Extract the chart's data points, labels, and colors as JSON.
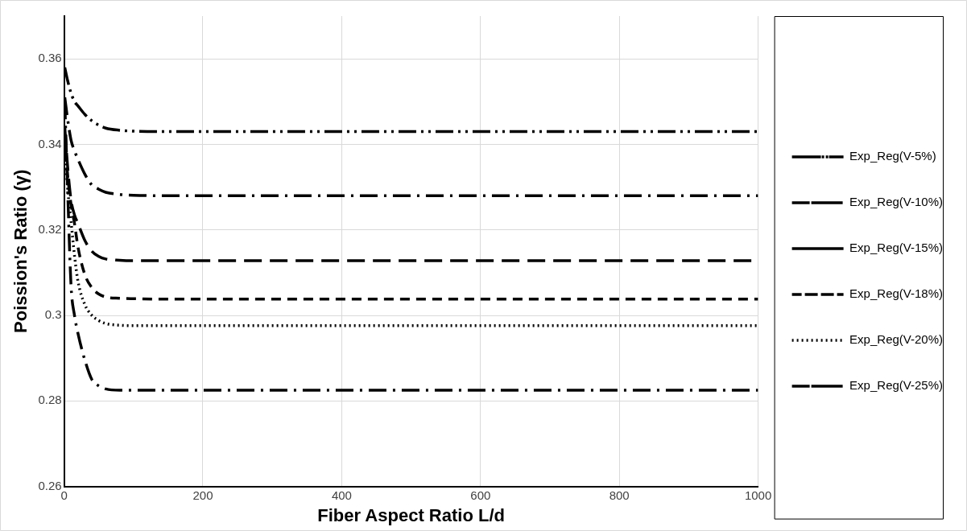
{
  "chart_data": {
    "type": "line",
    "xlabel": "Fiber Aspect Ratio L/d",
    "ylabel": "Poission's Ratio (γ)",
    "x": [
      1,
      5,
      10,
      15,
      20,
      30,
      40,
      50,
      60,
      80,
      100,
      150,
      1000
    ],
    "xlim": [
      0,
      1000
    ],
    "xticks": [
      0,
      200,
      400,
      600,
      800,
      1000
    ],
    "ylim": [
      0.26,
      0.37
    ],
    "yticks": [
      0.26,
      0.28,
      0.3,
      0.32,
      0.34,
      0.36
    ],
    "grid": true,
    "legend": "right",
    "marker": "none",
    "series": [
      {
        "name": "Exp_Reg(V-5%)",
        "color": "#000000",
        "line_style": "dashed",
        "values": [
          0.358,
          0.355,
          0.352,
          0.35,
          0.349,
          0.347,
          0.3455,
          0.3445,
          0.3438,
          0.3433,
          0.3431,
          0.343,
          0.343
        ]
      },
      {
        "name": "Exp_Reg(V-10%)",
        "color": "#000000",
        "line_style": "dashed",
        "values": [
          0.351,
          0.346,
          0.341,
          0.3385,
          0.3365,
          0.333,
          0.3305,
          0.3295,
          0.3288,
          0.3283,
          0.3281,
          0.328,
          0.328
        ]
      },
      {
        "name": "Exp_Reg(V-15%)",
        "color": "#000000",
        "line_style": "dashed",
        "values": [
          0.344,
          0.335,
          0.327,
          0.3235,
          0.3215,
          0.3175,
          0.315,
          0.3138,
          0.3132,
          0.3129,
          0.3128,
          0.3128,
          0.3128
        ]
      },
      {
        "name": "Exp_Reg(V-18%)",
        "color": "#000000",
        "line_style": "dashed",
        "values": [
          0.342,
          0.333,
          0.326,
          0.3215,
          0.316,
          0.3095,
          0.3065,
          0.305,
          0.3043,
          0.304,
          0.3039,
          0.3038,
          0.3038
        ]
      },
      {
        "name": "Exp_Reg(V-20%)",
        "color": "#000000",
        "line_style": "dotted",
        "values": [
          0.34,
          0.33,
          0.322,
          0.314,
          0.308,
          0.3025,
          0.3,
          0.2988,
          0.2981,
          0.2977,
          0.2976,
          0.2976,
          0.2976
        ]
      },
      {
        "name": "Exp_Reg(V-25%)",
        "color": "#000000",
        "line_style": "dashed",
        "values": [
          0.35,
          0.33,
          0.307,
          0.3,
          0.2958,
          0.2895,
          0.285,
          0.2835,
          0.2828,
          0.2825,
          0.2825,
          0.2825,
          0.2825
        ]
      }
    ]
  }
}
